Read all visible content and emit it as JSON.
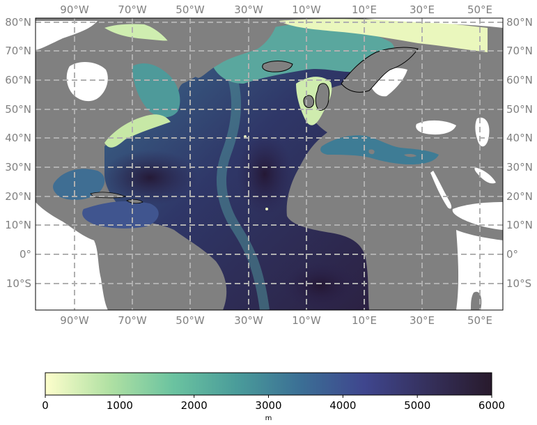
{
  "map": {
    "region": "North Atlantic bathymetry",
    "lon_range": [
      -103,
      59
    ],
    "lat_range": [
      -19.5,
      81.5
    ],
    "lon_ticks": [
      "90°W",
      "70°W",
      "50°W",
      "30°W",
      "10°W",
      "10°E",
      "30°E",
      "50°E"
    ],
    "lat_ticks": [
      "80°N",
      "70°N",
      "60°N",
      "50°N",
      "40°N",
      "30°N",
      "20°N",
      "10°N",
      "0°",
      "10°S"
    ],
    "land_color": "#808080",
    "gridline_color": "#b0b0b0",
    "gridlines": "dashed"
  },
  "colorbar": {
    "ticks": [
      "0",
      "1000",
      "2000",
      "3000",
      "4000",
      "5000",
      "6000"
    ],
    "range": [
      0,
      6000
    ],
    "unit": "m",
    "colormap": "deep",
    "colors": [
      "#fdfecc",
      "#b1e1a3",
      "#6bc3a0",
      "#4a9c9a",
      "#3b6f95",
      "#3f468e",
      "#35305c",
      "#281a2c"
    ]
  }
}
